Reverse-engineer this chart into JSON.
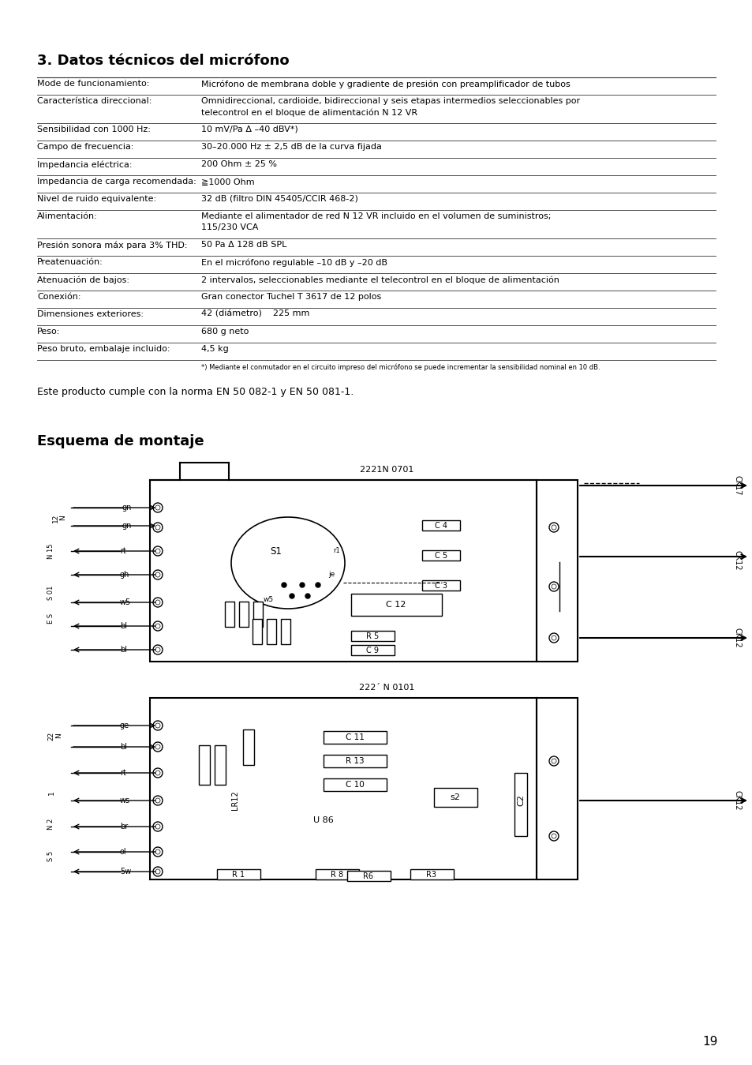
{
  "title_section": "3. Datos técnicos del micrófono",
  "table_rows": [
    [
      "Mode de funcionamiento:",
      "Micrófono de membrana doble y gradiente de presión con preamplificador de tubos"
    ],
    [
      "Característica direccional:",
      "Omnidireccional, cardioide, bidireccional y seis etapas intermedios seleccionables por\ntelecontrol en el bloque de alimentación N 12 VR"
    ],
    [
      "Sensibilidad con 1000 Hz:",
      "10 mV/Pa Δ –40 dBV*)"
    ],
    [
      "Campo de frecuencia:",
      "30–20.000 Hz ± 2,5 dB de la curva fijada"
    ],
    [
      "Impedancia eléctrica:",
      "200 Ohm ± 25 %"
    ],
    [
      "Impedancia de carga recomendada:",
      "≧1000 Ohm"
    ],
    [
      "Nivel de ruido equivalente:",
      "32 dB (filtro DIN 45405/CCIR 468-2)"
    ],
    [
      "Alimentación:",
      "Mediante el alimentador de red N 12 VR incluido en el volumen de suministros;\n115/230 VCA"
    ],
    [
      "Presión sonora máx para 3% THD:",
      "50 Pa Δ 128 dB SPL"
    ],
    [
      "Preatenuación:",
      "En el micrófono regulable –10 dB y –20 dB"
    ],
    [
      "Atenuación de bajos:",
      "2 intervalos, seleccionables mediante el telecontrol en el bloque de alimentación"
    ],
    [
      "Conexión:",
      "Gran conector Tuchel T 3617 de 12 polos"
    ],
    [
      "Dimensiones exteriores:",
      "42 (diámetro)    225 mm"
    ],
    [
      "Peso:",
      "680 g neto"
    ],
    [
      "Peso bruto, embalaje incluido:",
      "4,5 kg"
    ]
  ],
  "footnote": "*) Mediante el conmutador en el circuito impreso del micrófono se puede incrementar la sensibilidad nominal en 10 dB.",
  "norma_text": "Este producto cumple con la norma EN 50 082-1 y EN 50 081-1.",
  "section2_title": "Esquema de montaje",
  "diagram1_label": "2221N 0701",
  "diagram2_label": "222´ N 0101",
  "page_number": "19",
  "bg_color": "#ffffff",
  "text_color": "#000000"
}
